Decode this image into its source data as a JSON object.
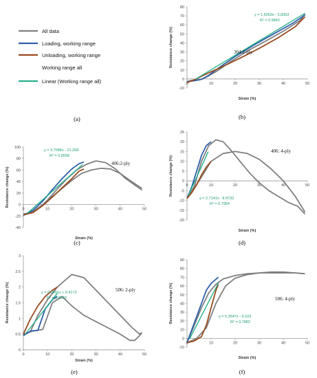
{
  "legend": {
    "items": [
      {
        "label": "All data",
        "color": "#7f7f7f"
      },
      {
        "label": "Loading, working range",
        "color": "#2e5ea8"
      },
      {
        "label": "Unloading, working range",
        "color": "#9a4a1e"
      },
      {
        "label": "Working range all",
        "color": ""
      },
      {
        "label": "Linear (Working range all)",
        "color": "#26b08c"
      }
    ],
    "panel_label": "(a)"
  },
  "colors": {
    "all_data": "#7f7f7f",
    "loading": "#2e5ea8",
    "unloading": "#9a4a1e",
    "linear": "#26b08c"
  },
  "chart_data": [
    {
      "id": "b",
      "type": "line",
      "panel_label": "(b)",
      "annotation": "304:2-ply",
      "equation": "y = 1.6063x - 5.8303",
      "r2": "R² = 0.9842",
      "xlabel": "Strain (%)",
      "ylabel": "Resistance change (%)",
      "xlim": [
        0,
        50
      ],
      "ylim": [
        -10,
        80
      ],
      "xticks": [
        0,
        10,
        20,
        30,
        40,
        50
      ],
      "yticks": [
        -10,
        0,
        10,
        20,
        30,
        40,
        50,
        60,
        70,
        80
      ],
      "series": [
        {
          "role": "all_data",
          "x": [
            0,
            2,
            5,
            8,
            12,
            18,
            25,
            32,
            40,
            47,
            49
          ],
          "y": [
            -3,
            -1.5,
            -1,
            2,
            8,
            19,
            31,
            41,
            53,
            65,
            72
          ]
        },
        {
          "role": "loading",
          "x": [
            0,
            3,
            6,
            9,
            13,
            20,
            28,
            36,
            44,
            49
          ],
          "y": [
            -3,
            -2,
            -0.5,
            4,
            12,
            25,
            38,
            50,
            62,
            71
          ]
        },
        {
          "role": "unloading",
          "x": [
            0,
            3,
            6,
            10,
            15,
            22,
            30,
            38,
            45,
            49
          ],
          "y": [
            -4,
            -1,
            3,
            8,
            14,
            23,
            34,
            46,
            58,
            69
          ]
        },
        {
          "role": "linear",
          "x": [
            3.5,
            49
          ],
          "y": [
            -0.2,
            72.9
          ]
        }
      ]
    },
    {
      "id": "c",
      "type": "line",
      "panel_label": "(c)",
      "annotation": "406:2-ply",
      "equation": "y = 3.7086x - 21.268",
      "r2": "R² = 0.9558",
      "xlabel": "Strain (%)",
      "ylabel": "Resistance change (%)",
      "xlim": [
        0,
        50
      ],
      "ylim": [
        -40,
        100
      ],
      "xticks": [
        0,
        10,
        20,
        30,
        40,
        50
      ],
      "yticks": [
        -40,
        -20,
        0,
        20,
        40,
        60,
        80,
        100
      ],
      "series": [
        {
          "role": "all_data",
          "x": [
            0,
            3,
            6,
            10,
            14,
            18,
            22,
            26,
            30,
            34,
            38,
            42,
            46,
            49
          ],
          "y": [
            -17,
            -15,
            -8,
            8,
            27,
            45,
            60,
            70,
            76,
            73,
            62,
            46,
            34,
            25
          ]
        },
        {
          "role": "all_data",
          "x": [
            0,
            4,
            8,
            12,
            16,
            20,
            24,
            28,
            32,
            36,
            40,
            44,
            49
          ],
          "y": [
            -17,
            -12,
            0,
            14,
            28,
            42,
            54,
            60,
            63,
            62,
            54,
            42,
            28
          ]
        },
        {
          "role": "loading",
          "x": [
            0,
            4,
            8,
            12,
            16,
            20,
            23,
            25
          ],
          "y": [
            -19,
            -10,
            6,
            26,
            45,
            62,
            71,
            74
          ]
        },
        {
          "role": "unloading",
          "x": [
            0,
            4,
            8,
            12,
            16,
            20,
            23,
            25
          ],
          "y": [
            -18,
            -14,
            -2,
            13,
            29,
            45,
            58,
            62
          ]
        },
        {
          "role": "linear",
          "x": [
            1.5,
            24.5
          ],
          "y": [
            -15.7,
            69.6
          ]
        }
      ]
    },
    {
      "id": "d",
      "type": "line",
      "panel_label": "(d)",
      "annotation": "406: 4-ply",
      "equation": "y = 2.7141x - 8.9732",
      "r2": "R² = 0.7954",
      "xlabel": "Strain (%)",
      "ylabel": "Resistance change (%)",
      "xlim": [
        0,
        50
      ],
      "ylim": [
        -20,
        25
      ],
      "xticks": [
        0,
        10,
        20,
        30,
        40,
        50
      ],
      "yticks": [
        -20,
        -15,
        -10,
        -5,
        0,
        5,
        10,
        15,
        20,
        25
      ],
      "series": [
        {
          "role": "all_data",
          "x": [
            0,
            3,
            6,
            9,
            12,
            15,
            18,
            22,
            26,
            30,
            34,
            38,
            42,
            46,
            49
          ],
          "y": [
            -9,
            -3,
            10,
            18,
            21,
            20,
            16,
            10,
            4,
            -1,
            -5,
            -8,
            -11,
            -13,
            -17
          ]
        },
        {
          "role": "all_data",
          "x": [
            0,
            5,
            10,
            15,
            20,
            25,
            30,
            35,
            40,
            45,
            49
          ],
          "y": [
            -9,
            0,
            10,
            14,
            15,
            14,
            11,
            6,
            0,
            -8,
            -16
          ]
        },
        {
          "role": "loading",
          "x": [
            0,
            2,
            4,
            6,
            8,
            10
          ],
          "y": [
            -9,
            -3,
            5,
            13,
            18,
            20
          ]
        },
        {
          "role": "unloading",
          "x": [
            0,
            2,
            4,
            6,
            8,
            10
          ],
          "y": [
            -9,
            -6,
            -2,
            3,
            7,
            10
          ]
        },
        {
          "role": "linear",
          "x": [
            0.5,
            8.8
          ],
          "y": [
            -7.6,
            14.9
          ]
        }
      ]
    },
    {
      "id": "e",
      "type": "line",
      "panel_label": "(e)",
      "annotation": "506: 2-ply",
      "equation": "y = 0.0991x + 0.4172",
      "r2": "R² = 0.8303",
      "xlabel": "Strain (%)",
      "ylabel": "Resistance change (%)",
      "xlim": [
        0,
        50
      ],
      "ylim": [
        0,
        3
      ],
      "xticks": [
        0,
        10,
        20,
        30,
        40,
        50
      ],
      "yticks": [
        0,
        0.5,
        1,
        1.5,
        2,
        2.5,
        3
      ],
      "series": [
        {
          "role": "all_data",
          "x": [
            0,
            3,
            6,
            10,
            14,
            17,
            20,
            25,
            30,
            35,
            40,
            45,
            48,
            49
          ],
          "y": [
            0.45,
            0.6,
            1.1,
            1.6,
            2.0,
            2.2,
            2.4,
            2.3,
            1.9,
            1.5,
            1.1,
            0.7,
            0.5,
            0.55
          ]
        },
        {
          "role": "all_data",
          "x": [
            0,
            4,
            8,
            12,
            16,
            20,
            25,
            30,
            35,
            40,
            44,
            46,
            48,
            49
          ],
          "y": [
            0.5,
            0.6,
            0.65,
            1.5,
            1.7,
            1.4,
            1.1,
            0.9,
            0.7,
            0.5,
            0.3,
            0.3,
            0.45,
            0.55
          ]
        },
        {
          "role": "loading",
          "x": [
            0,
            3,
            6,
            9,
            12,
            14
          ],
          "y": [
            0.45,
            0.6,
            0.62,
            1.3,
            1.6,
            1.7
          ]
        },
        {
          "role": "unloading",
          "x": [
            0,
            3,
            6,
            9,
            12,
            14
          ],
          "y": [
            0.5,
            1.0,
            1.4,
            1.7,
            1.9,
            2.0
          ]
        },
        {
          "role": "linear",
          "x": [
            0.5,
            14
          ],
          "y": [
            0.47,
            1.8
          ]
        }
      ]
    },
    {
      "id": "f",
      "type": "line",
      "panel_label": "(f)",
      "annotation": "506: 4-ply",
      "equation": "y = 5.3547x - 6.223",
      "r2": "R² = 0.7882",
      "xlabel": "Strain (%)",
      "ylabel": "Resistance change (%)",
      "xlim": [
        0,
        50
      ],
      "ylim": [
        -10,
        90
      ],
      "xticks": [
        0,
        10,
        20,
        30,
        40,
        50
      ],
      "yticks": [
        -10,
        0,
        10,
        20,
        30,
        40,
        50,
        60,
        70,
        80,
        90
      ],
      "series": [
        {
          "role": "all_data",
          "x": [
            0,
            3,
            6,
            9,
            12,
            15,
            20,
            25,
            30,
            35,
            40,
            45,
            49
          ],
          "y": [
            -5,
            15,
            35,
            52,
            62,
            68,
            72,
            74,
            75,
            75,
            75,
            75,
            74
          ]
        },
        {
          "role": "all_data",
          "x": [
            0,
            4,
            8,
            12,
            16,
            20,
            25,
            30,
            35,
            40,
            45,
            49
          ],
          "y": [
            -5,
            0,
            12,
            40,
            60,
            69,
            73,
            75,
            76,
            76,
            75,
            74
          ]
        },
        {
          "role": "loading",
          "x": [
            0,
            2,
            4,
            6,
            8,
            10,
            13
          ],
          "y": [
            -5,
            10,
            25,
            40,
            55,
            63,
            70
          ]
        },
        {
          "role": "unloading",
          "x": [
            0,
            3,
            6,
            8,
            10,
            12,
            13
          ],
          "y": [
            -5,
            -3,
            2,
            15,
            35,
            55,
            62
          ]
        },
        {
          "role": "linear",
          "x": [
            1,
            13
          ],
          "y": [
            -0.9,
            63.4
          ]
        }
      ]
    }
  ]
}
